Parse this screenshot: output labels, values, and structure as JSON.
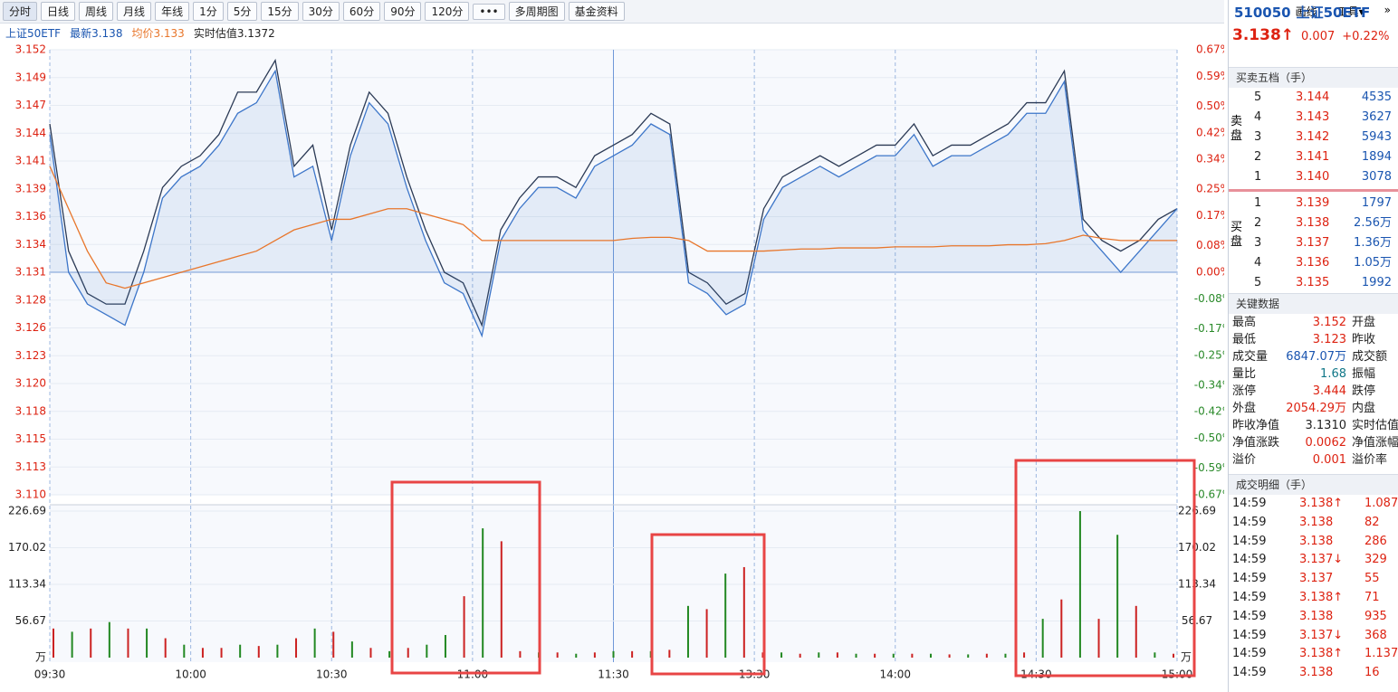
{
  "toolbar": {
    "tabs": [
      "分时",
      "日线",
      "周线",
      "月线",
      "年线",
      "1分",
      "5分",
      "15分",
      "30分",
      "60分",
      "90分",
      "120分",
      "•••",
      "多周期图",
      "基金资料"
    ],
    "tools": [
      "画线",
      "工具▾",
      "»"
    ]
  },
  "info": {
    "name": "上证50ETF",
    "latest": "最新3.138",
    "avg": "均价3.133",
    "estimate": "实时估值3.1372"
  },
  "chart_data": [
    {
      "type": "line",
      "x_labels": [
        "09:30",
        "10:00",
        "10:30",
        "11:00",
        "11:30",
        "13:30",
        "14:00",
        "14:30",
        "15:00"
      ],
      "ylim": [
        3.11,
        3.152
      ],
      "yticks": [
        {
          "value": 3.152,
          "label": "3.152"
        },
        {
          "value": 3.149375,
          "label": "3.149"
        },
        {
          "value": 3.14675,
          "label": "3.147"
        },
        {
          "value": 3.144125,
          "label": "3.144"
        },
        {
          "value": 3.1415,
          "label": "3.141"
        },
        {
          "value": 3.138875,
          "label": "3.139"
        },
        {
          "value": 3.13625,
          "label": "3.136"
        },
        {
          "value": 3.133625,
          "label": "3.134"
        },
        {
          "value": 3.131,
          "label": "3.131"
        },
        {
          "value": 3.128375,
          "label": "3.128"
        },
        {
          "value": 3.12575,
          "label": "3.126"
        },
        {
          "value": 3.123125,
          "label": "3.123"
        },
        {
          "value": 3.1205,
          "label": "3.120"
        },
        {
          "value": 3.117875,
          "label": "3.118"
        },
        {
          "value": 3.11525,
          "label": "3.115"
        },
        {
          "value": 3.112625,
          "label": "3.113"
        },
        {
          "value": 3.11,
          "label": "3.110"
        }
      ],
      "y2lim": [
        -0.67,
        0.67
      ],
      "y2ticks": [
        {
          "value": 0.67,
          "label": "0.67%"
        },
        {
          "value": 0.59,
          "label": "0.59%"
        },
        {
          "value": 0.5,
          "label": "0.50%"
        },
        {
          "value": 0.42,
          "label": "0.42%"
        },
        {
          "value": 0.34,
          "label": "0.34%"
        },
        {
          "value": 0.25,
          "label": "0.25%"
        },
        {
          "value": 0.17,
          "label": "0.17%"
        },
        {
          "value": 0.08,
          "label": "0.08%"
        },
        {
          "value": 0,
          "label": "0.00%"
        },
        {
          "value": -0.08,
          "label": "-0.08%"
        },
        {
          "value": -0.17,
          "label": "-0.17%"
        },
        {
          "value": -0.25,
          "label": "-0.25%"
        },
        {
          "value": -0.34,
          "label": "-0.34%"
        },
        {
          "value": -0.42,
          "label": "-0.42%"
        },
        {
          "value": -0.5,
          "label": "-0.50%"
        },
        {
          "value": -0.59,
          "label": "-0.59%"
        },
        {
          "value": -0.67,
          "label": "-0.67%"
        }
      ],
      "baseline": 3.131,
      "series": [
        {
          "color": "#2b3a55",
          "values": [
            3.145,
            3.133,
            3.129,
            3.128,
            3.128,
            3.133,
            3.139,
            3.141,
            3.142,
            3.144,
            3.148,
            3.148,
            3.151,
            3.141,
            3.143,
            3.135,
            3.143,
            3.148,
            3.146,
            3.14,
            3.135,
            3.131,
            3.13,
            3.126,
            3.135,
            3.138,
            3.14,
            3.14,
            3.139,
            3.142,
            3.143,
            3.144,
            3.146,
            3.145,
            3.131,
            3.13,
            3.128,
            3.129,
            3.137,
            3.14,
            3.141,
            3.142,
            3.141,
            3.142,
            3.143,
            3.143,
            3.145,
            3.142,
            3.143,
            3.143,
            3.144,
            3.145,
            3.147,
            3.147,
            3.15,
            3.136,
            3.134,
            3.133,
            3.134,
            3.136,
            3.137
          ]
        },
        {
          "color": "#3d76c9",
          "fill": "rgba(61,118,201,0.10)",
          "values": [
            3.144,
            3.131,
            3.128,
            3.127,
            3.126,
            3.131,
            3.138,
            3.14,
            3.141,
            3.143,
            3.146,
            3.147,
            3.15,
            3.14,
            3.141,
            3.134,
            3.142,
            3.147,
            3.145,
            3.139,
            3.134,
            3.13,
            3.129,
            3.125,
            3.134,
            3.137,
            3.139,
            3.139,
            3.138,
            3.141,
            3.142,
            3.143,
            3.145,
            3.144,
            3.13,
            3.129,
            3.127,
            3.128,
            3.136,
            3.139,
            3.14,
            3.141,
            3.14,
            3.141,
            3.142,
            3.142,
            3.144,
            3.141,
            3.142,
            3.142,
            3.143,
            3.144,
            3.146,
            3.146,
            3.149,
            3.135,
            3.133,
            3.131,
            3.133,
            3.135,
            3.137
          ]
        },
        {
          "color": "#e8762b",
          "values": [
            3.141,
            3.137,
            3.133,
            3.13,
            3.1295,
            3.13,
            3.1305,
            3.131,
            3.1315,
            3.132,
            3.1325,
            3.133,
            3.134,
            3.135,
            3.1355,
            3.136,
            3.136,
            3.1365,
            3.137,
            3.137,
            3.1365,
            3.136,
            3.1355,
            3.134,
            3.134,
            3.134,
            3.134,
            3.134,
            3.134,
            3.134,
            3.134,
            3.1342,
            3.1343,
            3.1343,
            3.134,
            3.133,
            3.133,
            3.133,
            3.133,
            3.1331,
            3.1332,
            3.1332,
            3.1333,
            3.1333,
            3.1333,
            3.1334,
            3.1334,
            3.1334,
            3.1335,
            3.1335,
            3.1335,
            3.1336,
            3.1336,
            3.1337,
            3.134,
            3.1345,
            3.1342,
            3.134,
            3.134,
            3.134,
            3.134
          ]
        }
      ]
    },
    {
      "type": "bar",
      "ylim": [
        0,
        226.69
      ],
      "yticks": [
        226.69,
        170.02,
        113.34,
        56.67
      ],
      "unit": "万",
      "values": [
        45,
        40,
        45,
        55,
        45,
        45,
        30,
        20,
        15,
        15,
        20,
        18,
        20,
        30,
        45,
        40,
        25,
        15,
        10,
        15,
        20,
        35,
        95,
        200,
        180,
        10,
        8,
        8,
        6,
        8,
        10,
        10,
        10,
        12,
        80,
        75,
        130,
        140,
        8,
        8,
        6,
        8,
        8,
        6,
        6,
        6,
        6,
        6,
        5,
        5,
        6,
        6,
        8,
        60,
        90,
        226.69,
        60,
        190,
        80,
        8,
        6
      ],
      "colors": [
        "#c22",
        "#282",
        "#c22",
        "#282",
        "#c22",
        "#282",
        "#c22",
        "#282",
        "#c22",
        "#c22",
        "#282",
        "#c22",
        "#282",
        "#c22",
        "#282",
        "#c22",
        "#282",
        "#c22",
        "#282",
        "#c22",
        "#282",
        "#282",
        "#c22",
        "#282",
        "#c22",
        "#c22",
        "#282",
        "#c22",
        "#282",
        "#c22",
        "#282",
        "#c22",
        "#282",
        "#c22",
        "#282",
        "#c22",
        "#282",
        "#c22",
        "#c22",
        "#282",
        "#c22",
        "#282",
        "#c22",
        "#282",
        "#c22",
        "#282",
        "#c22",
        "#282",
        "#c22",
        "#282",
        "#c22",
        "#282",
        "#c22",
        "#282",
        "#c22",
        "#282",
        "#c22",
        "#282",
        "#c22",
        "#282",
        "#c22"
      ]
    }
  ],
  "quote": {
    "code": "510050",
    "name": "上证50ETF",
    "price": "3.138↑",
    "change": "0.007",
    "pct": "+0.22%",
    "book_title": "买卖五档（手）",
    "sell_label": "卖盘",
    "buy_label": "买盘",
    "sell": [
      [
        "5",
        "3.144",
        "4535"
      ],
      [
        "4",
        "3.143",
        "3627"
      ],
      [
        "3",
        "3.142",
        "5943"
      ],
      [
        "2",
        "3.141",
        "1894"
      ],
      [
        "1",
        "3.140",
        "3078"
      ]
    ],
    "buy": [
      [
        "1",
        "3.139",
        "1797"
      ],
      [
        "2",
        "3.138",
        "2.56万"
      ],
      [
        "3",
        "3.137",
        "1.36万"
      ],
      [
        "4",
        "3.136",
        "1.05万"
      ],
      [
        "5",
        "3.135",
        "1992"
      ]
    ],
    "key_title": "关键数据",
    "key": [
      [
        "最高",
        "3.152",
        "开盘"
      ],
      [
        "最低",
        "3.123",
        "昨收"
      ],
      [
        "成交量",
        "6847.07万",
        "成交额"
      ],
      [
        "量比",
        "1.68",
        "振幅"
      ],
      [
        "涨停",
        "3.444",
        "跌停"
      ],
      [
        "外盘",
        "2054.29万",
        "内盘"
      ],
      [
        "昨收净值",
        "3.1310",
        "实时估值"
      ],
      [
        "净值涨跌",
        "0.0062",
        "净值涨幅"
      ],
      [
        "溢价",
        "0.001",
        "溢价率"
      ]
    ],
    "key_colors": [
      "#d21",
      "#d21",
      "#1a55b0",
      "#178",
      "#d21",
      "#d21",
      "#222",
      "#d21",
      "#d21"
    ],
    "trades_title": "成交明细（手）",
    "trades": [
      [
        "14:59",
        "3.138↑",
        "1.087"
      ],
      [
        "14:59",
        "3.138",
        "82"
      ],
      [
        "14:59",
        "3.138",
        "286"
      ],
      [
        "14:59",
        "3.137↓",
        "329"
      ],
      [
        "14:59",
        "3.137",
        "55"
      ],
      [
        "14:59",
        "3.138↑",
        "71"
      ],
      [
        "14:59",
        "3.138",
        "935"
      ],
      [
        "14:59",
        "3.137↓",
        "368"
      ],
      [
        "14:59",
        "3.138↑",
        "1.137"
      ],
      [
        "14:59",
        "3.138",
        "16"
      ]
    ]
  }
}
